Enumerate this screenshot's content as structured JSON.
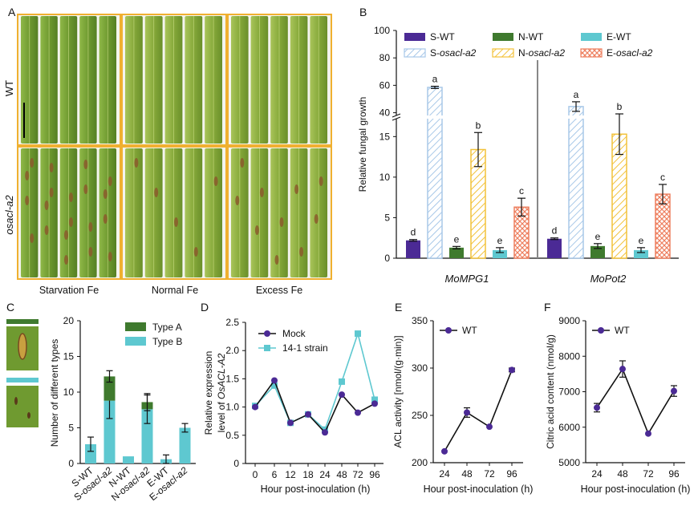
{
  "panel_letters": {
    "a": "A",
    "b": "B",
    "c": "C",
    "d": "D",
    "e": "E",
    "f": "F"
  },
  "panel_a": {
    "row_labels": [
      "WT",
      "osacl-a2"
    ],
    "col_labels": [
      "Starvation Fe",
      "Normal Fe",
      "Excess Fe"
    ],
    "colors": {
      "border": "#f0b030",
      "leaf": "#6f9a30",
      "leaf_dark": "#4e7a22",
      "lesion": "#8b5a2b"
    }
  },
  "chart_data": [
    {
      "id": "B",
      "type": "bar",
      "ylabel": "Relative fungal growth",
      "yticks_lower": [
        0,
        5,
        10,
        15
      ],
      "yticks_upper": [
        40,
        60,
        80,
        100
      ],
      "ylim": [
        0,
        100
      ],
      "axis_break": [
        18,
        38
      ],
      "groups": [
        "MoMPG1",
        "MoPot2"
      ],
      "series": [
        {
          "name": "S-WT",
          "color": "#4b2a95",
          "pattern": "solid",
          "values": [
            2.2,
            2.4
          ],
          "errors": [
            0.1,
            0.1
          ],
          "letters": [
            "d",
            "d"
          ]
        },
        {
          "name": "S-osacl-a2",
          "color": "#a8c8e8",
          "pattern": "hatch",
          "values": [
            58.5,
            44.5
          ],
          "errors": [
            0.8,
            3.5
          ],
          "letters": [
            "a",
            "a"
          ]
        },
        {
          "name": "N-WT",
          "color": "#3f7a2e",
          "pattern": "solid",
          "values": [
            1.3,
            1.5
          ],
          "errors": [
            0.15,
            0.3
          ],
          "letters": [
            "e",
            "e"
          ]
        },
        {
          "name": "N-osacl-a2",
          "color": "#f2c23a",
          "pattern": "hatch",
          "values": [
            13.4,
            15.3
          ],
          "errors": [
            2.1,
            2.5
          ],
          "letters": [
            "b",
            "b"
          ]
        },
        {
          "name": "E-WT",
          "color": "#5ec8d0",
          "pattern": "solid",
          "values": [
            1.0,
            1.0
          ],
          "errors": [
            0.3,
            0.3
          ],
          "letters": [
            "e",
            "e"
          ]
        },
        {
          "name": "E-osacl-a2",
          "color": "#ee8060",
          "pattern": "cross",
          "values": [
            6.3,
            7.9
          ],
          "errors": [
            1.1,
            1.2
          ],
          "letters": [
            "c",
            "c"
          ]
        }
      ]
    },
    {
      "id": "C",
      "type": "bar",
      "stacked": true,
      "ylabel": "Number of different types",
      "ylim": [
        0,
        20
      ],
      "yticks": [
        0,
        5,
        10,
        15,
        20
      ],
      "categories": [
        "S-WT",
        "S-osacl-a2",
        "N-WT",
        "N-osacl-a2",
        "E-WT",
        "E-osacl-a2"
      ],
      "series": [
        {
          "name": "Type B",
          "color": "#5ec8d0",
          "values": [
            2.7,
            8.8,
            1.0,
            7.6,
            0.6,
            5.0
          ],
          "errors": [
            1.0,
            2.5,
            0,
            2.0,
            0.6,
            0.6
          ]
        },
        {
          "name": "Type A",
          "color": "#3f7a2e",
          "values": [
            0,
            3.4,
            0,
            1.0,
            0,
            0
          ],
          "errors": [
            0,
            0.8,
            0,
            1.2,
            0,
            0
          ]
        }
      ],
      "thumbnail_colors": {
        "type_a": "#3f7a2e",
        "type_b": "#5ec8d0"
      }
    },
    {
      "id": "D",
      "type": "line",
      "ylabel_line1": "Relative expression",
      "ylabel_line2_prefix": "level of ",
      "ylabel_gene": "OsACL-A2",
      "xlabel": "Hour post-inoculation (h)",
      "x": [
        "0",
        "6",
        "12",
        "18",
        "24",
        "48",
        "72",
        "96"
      ],
      "ylim": [
        0,
        2.5
      ],
      "yticks": [
        "0",
        "0.5",
        "1.0",
        "1.5",
        "2.0",
        "2.5"
      ],
      "series": [
        {
          "name": "Mock",
          "color": "#4b2a95",
          "marker": "circle",
          "values": [
            1.0,
            1.47,
            0.72,
            0.87,
            0.55,
            1.22,
            0.9,
            1.06
          ]
        },
        {
          "name": "14-1 strain",
          "color": "#5ec8d0",
          "marker": "square",
          "values": [
            1.02,
            1.38,
            0.72,
            0.87,
            0.6,
            1.45,
            2.3,
            1.13
          ]
        }
      ]
    },
    {
      "id": "E",
      "type": "line",
      "ylabel": "ACL activity [nmol/(g·min)]",
      "xlabel": "Hour post-inoculation (h)",
      "x": [
        "24",
        "48",
        "72",
        "96"
      ],
      "ylim": [
        200,
        350
      ],
      "yticks": [
        "200",
        "250",
        "300",
        "350"
      ],
      "series": [
        {
          "name": "WT",
          "color": "#4b2a95",
          "values": [
            212,
            253,
            238,
            298
          ],
          "errors": [
            0,
            5,
            0,
            2
          ]
        }
      ]
    },
    {
      "id": "F",
      "type": "line",
      "ylabel": "Citric acid content (nmol/g)",
      "xlabel": "Hour post-inoculation (h)",
      "x": [
        "24",
        "48",
        "72",
        "96"
      ],
      "ylim": [
        5000,
        9000
      ],
      "yticks": [
        "5000",
        "6000",
        "7000",
        "8000",
        "9000"
      ],
      "series": [
        {
          "name": "WT",
          "color": "#4b2a95",
          "values": [
            6550,
            7640,
            5820,
            7020
          ],
          "errors": [
            120,
            230,
            0,
            150
          ]
        }
      ]
    }
  ]
}
